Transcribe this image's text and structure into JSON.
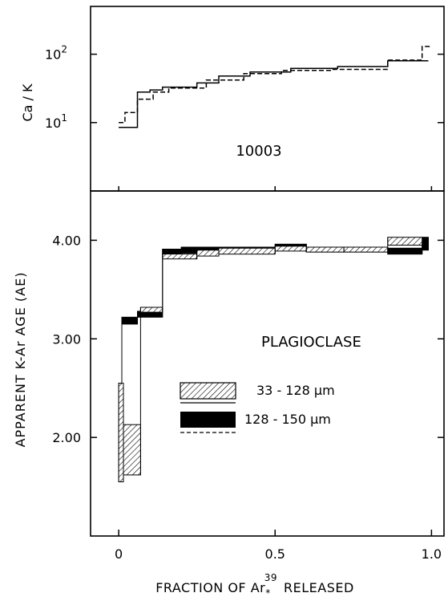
{
  "chart_data": [
    {
      "panel": "top",
      "type": "line",
      "ylabel": "Ca / K",
      "yscale": "log",
      "ylim": [
        1,
        500
      ],
      "xlim": [
        -0.09,
        1.04
      ],
      "y_ticks": [
        {
          "value": 10,
          "base": "10",
          "exp": "1"
        },
        {
          "value": 100,
          "base": "10",
          "exp": "2"
        }
      ],
      "annotation": "10003",
      "series": [
        {
          "style": "solid",
          "steps": [
            [
              0.0,
              0.06,
              8.5
            ],
            [
              0.06,
              0.1,
              28
            ],
            [
              0.1,
              0.14,
              30
            ],
            [
              0.14,
              0.25,
              33
            ],
            [
              0.25,
              0.32,
              38
            ],
            [
              0.32,
              0.42,
              48
            ],
            [
              0.42,
              0.55,
              55
            ],
            [
              0.55,
              0.7,
              62
            ],
            [
              0.7,
              0.86,
              66
            ],
            [
              0.86,
              0.99,
              80
            ]
          ]
        },
        {
          "style": "dashed",
          "steps": [
            [
              0.0,
              0.02,
              10
            ],
            [
              0.02,
              0.06,
              14
            ],
            [
              0.06,
              0.11,
              22
            ],
            [
              0.11,
              0.16,
              28
            ],
            [
              0.16,
              0.28,
              32
            ],
            [
              0.28,
              0.4,
              42
            ],
            [
              0.4,
              0.52,
              52
            ],
            [
              0.52,
              0.68,
              58
            ],
            [
              0.68,
              0.86,
              60
            ],
            [
              0.86,
              0.97,
              82
            ],
            [
              0.97,
              0.995,
              130
            ]
          ]
        }
      ]
    },
    {
      "panel": "bottom",
      "type": "bar",
      "ylabel": "APPARENT K-Ar AGE (AE)",
      "xlabel_main": "FRACTION OF Ar",
      "xlabel_sup": "39",
      "xlabel_sub": "*",
      "xlabel_end": "RELEASED",
      "xlim": [
        -0.09,
        1.04
      ],
      "ylim": [
        1.0,
        4.5
      ],
      "y_ticks": [
        "2.00",
        "3.00",
        "4.00"
      ],
      "x_ticks": [
        "0",
        "0.5",
        "1.0"
      ],
      "annotation": "PLAGIOCLASE",
      "legend": [
        {
          "label": "33 - 128 μm",
          "fill": "hatched",
          "line": "solid"
        },
        {
          "label": "128 - 150 μm",
          "fill": "black",
          "line": "dashed"
        }
      ],
      "series": [
        {
          "name": "33 - 128 μm",
          "fill": "hatched",
          "steps": [
            [
              0.0,
              0.015,
              1.55,
              2.55
            ],
            [
              0.015,
              0.07,
              1.62,
              2.13
            ],
            [
              0.07,
              0.14,
              3.27,
              3.32
            ],
            [
              0.14,
              0.25,
              3.81,
              3.86
            ],
            [
              0.25,
              0.32,
              3.84,
              3.9
            ],
            [
              0.32,
              0.5,
              3.86,
              3.92
            ],
            [
              0.5,
              0.6,
              3.89,
              3.94
            ],
            [
              0.6,
              0.72,
              3.88,
              3.93
            ],
            [
              0.72,
              0.86,
              3.88,
              3.93
            ],
            [
              0.86,
              0.97,
              3.95,
              4.03
            ]
          ]
        },
        {
          "name": "128 - 150 μm",
          "fill": "black",
          "steps": [
            [
              0.0,
              0.01,
              1.55,
              2.55
            ],
            [
              0.01,
              0.06,
              3.15,
              3.22
            ],
            [
              0.06,
              0.14,
              3.22,
              3.28
            ],
            [
              0.14,
              0.2,
              3.85,
              3.91
            ],
            [
              0.2,
              0.32,
              3.87,
              3.93
            ],
            [
              0.32,
              0.5,
              3.88,
              3.93
            ],
            [
              0.5,
              0.6,
              3.9,
              3.96
            ],
            [
              0.6,
              0.86,
              3.88,
              3.93
            ],
            [
              0.86,
              0.97,
              3.86,
              3.92
            ],
            [
              0.97,
              0.99,
              3.9,
              4.03
            ]
          ]
        }
      ]
    }
  ]
}
